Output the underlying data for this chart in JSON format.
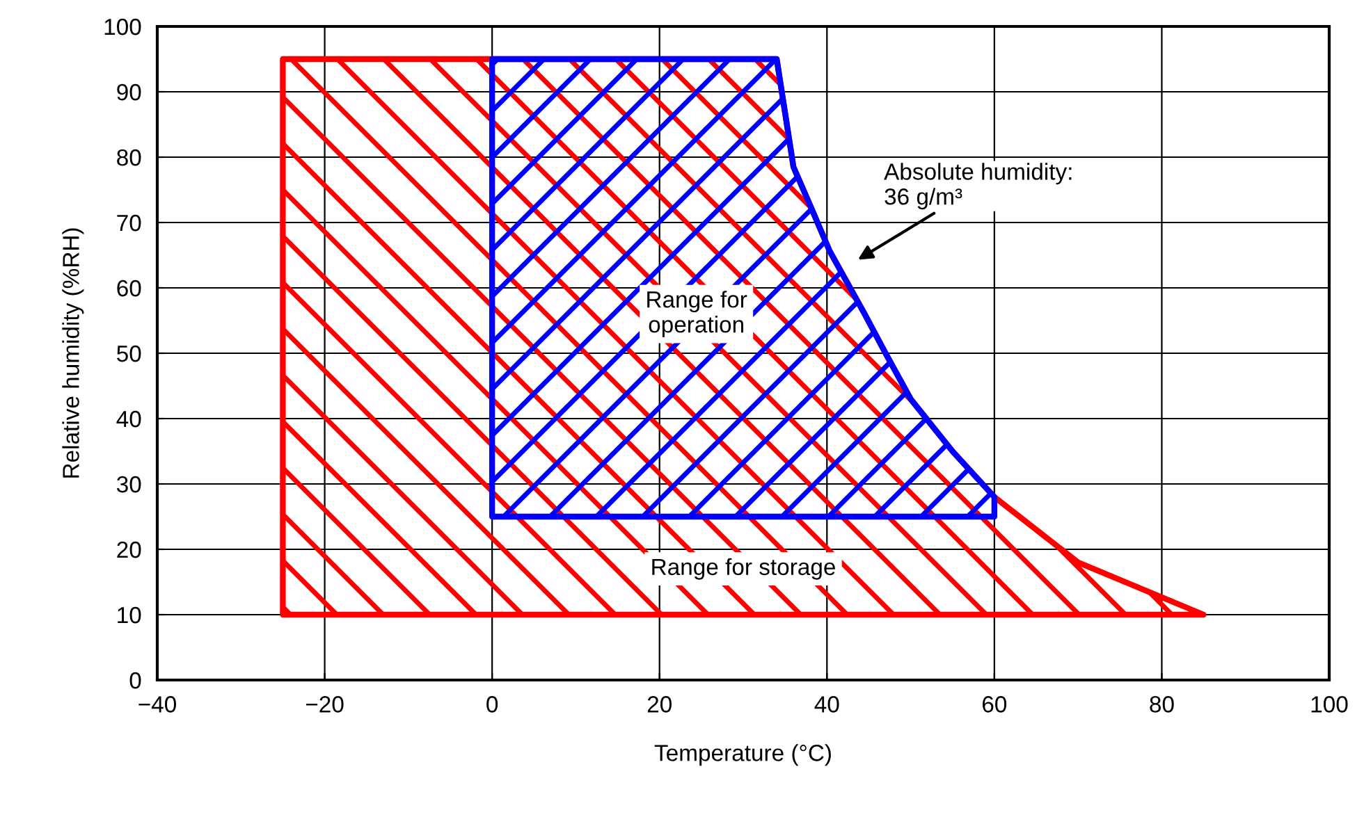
{
  "chart_data": {
    "type": "area",
    "xlabel": "Temperature (°C)",
    "ylabel": "Relative humidity (%RH)",
    "xlim": [
      -40,
      100
    ],
    "ylim": [
      0,
      100
    ],
    "xticks": [
      {
        "value": -40,
        "label": "−40"
      },
      {
        "value": -20,
        "label": "−20"
      },
      0,
      20,
      40,
      60,
      80,
      100
    ],
    "yticks": [
      0,
      10,
      20,
      30,
      40,
      50,
      60,
      70,
      80,
      90,
      100
    ],
    "grid": true,
    "legend": false,
    "series": [
      {
        "color": "#ff0000",
        "x": [
          -25,
          -25,
          34,
          36,
          38.2,
          40.3,
          44.5,
          47,
          50,
          55,
          60,
          70,
          85,
          -25
        ],
        "values": [
          10,
          95,
          95,
          78.5,
          72,
          65.7,
          56,
          50,
          43,
          35,
          28,
          18,
          10,
          10
        ]
      },
      {
        "color": "#0000ff",
        "x": [
          0,
          0,
          34,
          36,
          38.2,
          40.3,
          44.5,
          47,
          50,
          55,
          60,
          60,
          0
        ],
        "values": [
          25,
          95,
          95,
          78.5,
          72,
          65.7,
          56,
          50,
          43,
          35,
          28,
          25,
          25
        ]
      }
    ],
    "annotations": [
      "Absolute humidity:\n36 g/m³",
      "Range for\noperation",
      "Range for storage"
    ]
  }
}
